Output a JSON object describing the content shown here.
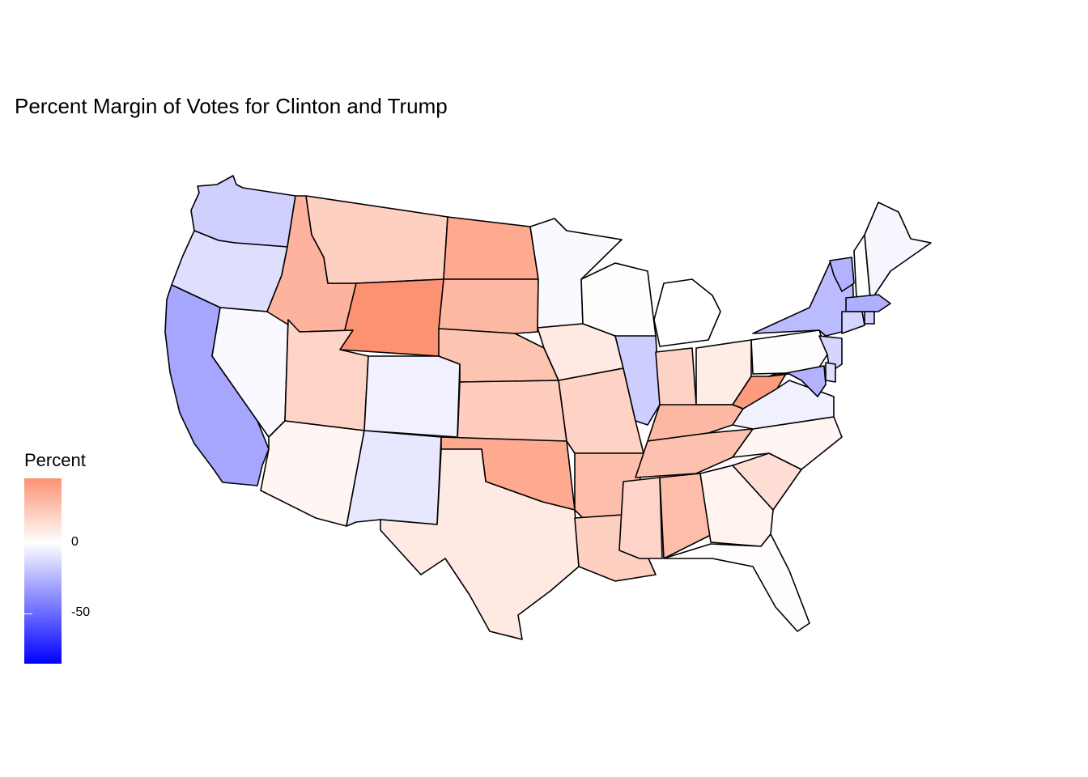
{
  "title": "Percent Margin of Votes for Clinton and Trump",
  "legend": {
    "title": "Percent",
    "ticks": [
      {
        "label": "0",
        "value": 0
      },
      {
        "label": "-50",
        "value": -50
      }
    ],
    "range": [
      -86,
      46
    ],
    "colors": {
      "low": "#0000ff",
      "mid": "#ffffff",
      "high": "#fc9272"
    }
  },
  "chart_data": {
    "type": "choropleth",
    "title": "Percent Margin of Votes for Clinton and Trump",
    "legend_title": "Percent",
    "color_scale": {
      "low": "#0000ff",
      "mid": "#ffffff",
      "high": "#fc9272",
      "midpoint": 0
    },
    "states": [
      {
        "abbr": "WA",
        "value": -16
      },
      {
        "abbr": "OR",
        "value": -11
      },
      {
        "abbr": "CA",
        "value": -30
      },
      {
        "abbr": "NV",
        "value": -2
      },
      {
        "abbr": "ID",
        "value": 32
      },
      {
        "abbr": "MT",
        "value": 20
      },
      {
        "abbr": "WY",
        "value": 46
      },
      {
        "abbr": "UT",
        "value": 18
      },
      {
        "abbr": "AZ",
        "value": 4
      },
      {
        "abbr": "CO",
        "value": -5
      },
      {
        "abbr": "NM",
        "value": -8
      },
      {
        "abbr": "ND",
        "value": 36
      },
      {
        "abbr": "SD",
        "value": 30
      },
      {
        "abbr": "NE",
        "value": 25
      },
      {
        "abbr": "KS",
        "value": 21
      },
      {
        "abbr": "OK",
        "value": 36
      },
      {
        "abbr": "TX",
        "value": 9
      },
      {
        "abbr": "MN",
        "value": -2
      },
      {
        "abbr": "IA",
        "value": 9
      },
      {
        "abbr": "MO",
        "value": 19
      },
      {
        "abbr": "AR",
        "value": 27
      },
      {
        "abbr": "LA",
        "value": 20
      },
      {
        "abbr": "WI",
        "value": 1
      },
      {
        "abbr": "IL",
        "value": -17
      },
      {
        "abbr": "MI",
        "value": 0
      },
      {
        "abbr": "IN",
        "value": 19
      },
      {
        "abbr": "OH",
        "value": 8
      },
      {
        "abbr": "KY",
        "value": 30
      },
      {
        "abbr": "TN",
        "value": 26
      },
      {
        "abbr": "MS",
        "value": 18
      },
      {
        "abbr": "AL",
        "value": 28
      },
      {
        "abbr": "GA",
        "value": 5
      },
      {
        "abbr": "FL",
        "value": 1
      },
      {
        "abbr": "SC",
        "value": 14
      },
      {
        "abbr": "NC",
        "value": 4
      },
      {
        "abbr": "VA",
        "value": -5
      },
      {
        "abbr": "WV",
        "value": 42
      },
      {
        "abbr": "PA",
        "value": 1
      },
      {
        "abbr": "NY",
        "value": -23
      },
      {
        "abbr": "VT",
        "value": -26
      },
      {
        "abbr": "NH",
        "value": 0
      },
      {
        "abbr": "ME",
        "value": -3
      },
      {
        "abbr": "MA",
        "value": -27
      },
      {
        "abbr": "CT",
        "value": -14
      },
      {
        "abbr": "RI",
        "value": -16
      },
      {
        "abbr": "NJ",
        "value": -14
      },
      {
        "abbr": "DE",
        "value": -11
      },
      {
        "abbr": "MD",
        "value": -26
      }
    ]
  }
}
